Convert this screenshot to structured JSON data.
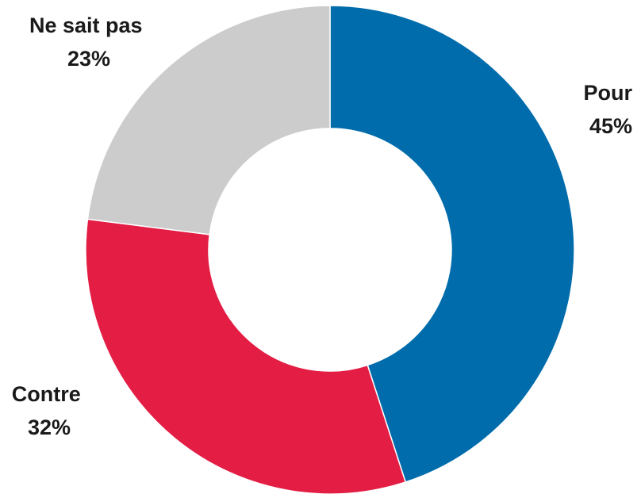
{
  "chart_data": {
    "type": "pie",
    "variant": "donut",
    "slices": [
      {
        "label": "Pour",
        "value": 45,
        "value_label": "45%",
        "color": "#006CAB"
      },
      {
        "label": "Contre",
        "value": 32,
        "value_label": "32%",
        "color": "#E31D44"
      },
      {
        "label": "Ne sait pas",
        "value": 23,
        "value_label": "23%",
        "color": "#CCCCCC"
      }
    ],
    "start_angle": "12 o'clock",
    "direction": "clockwise",
    "legend": "none (labels beside slices)"
  }
}
